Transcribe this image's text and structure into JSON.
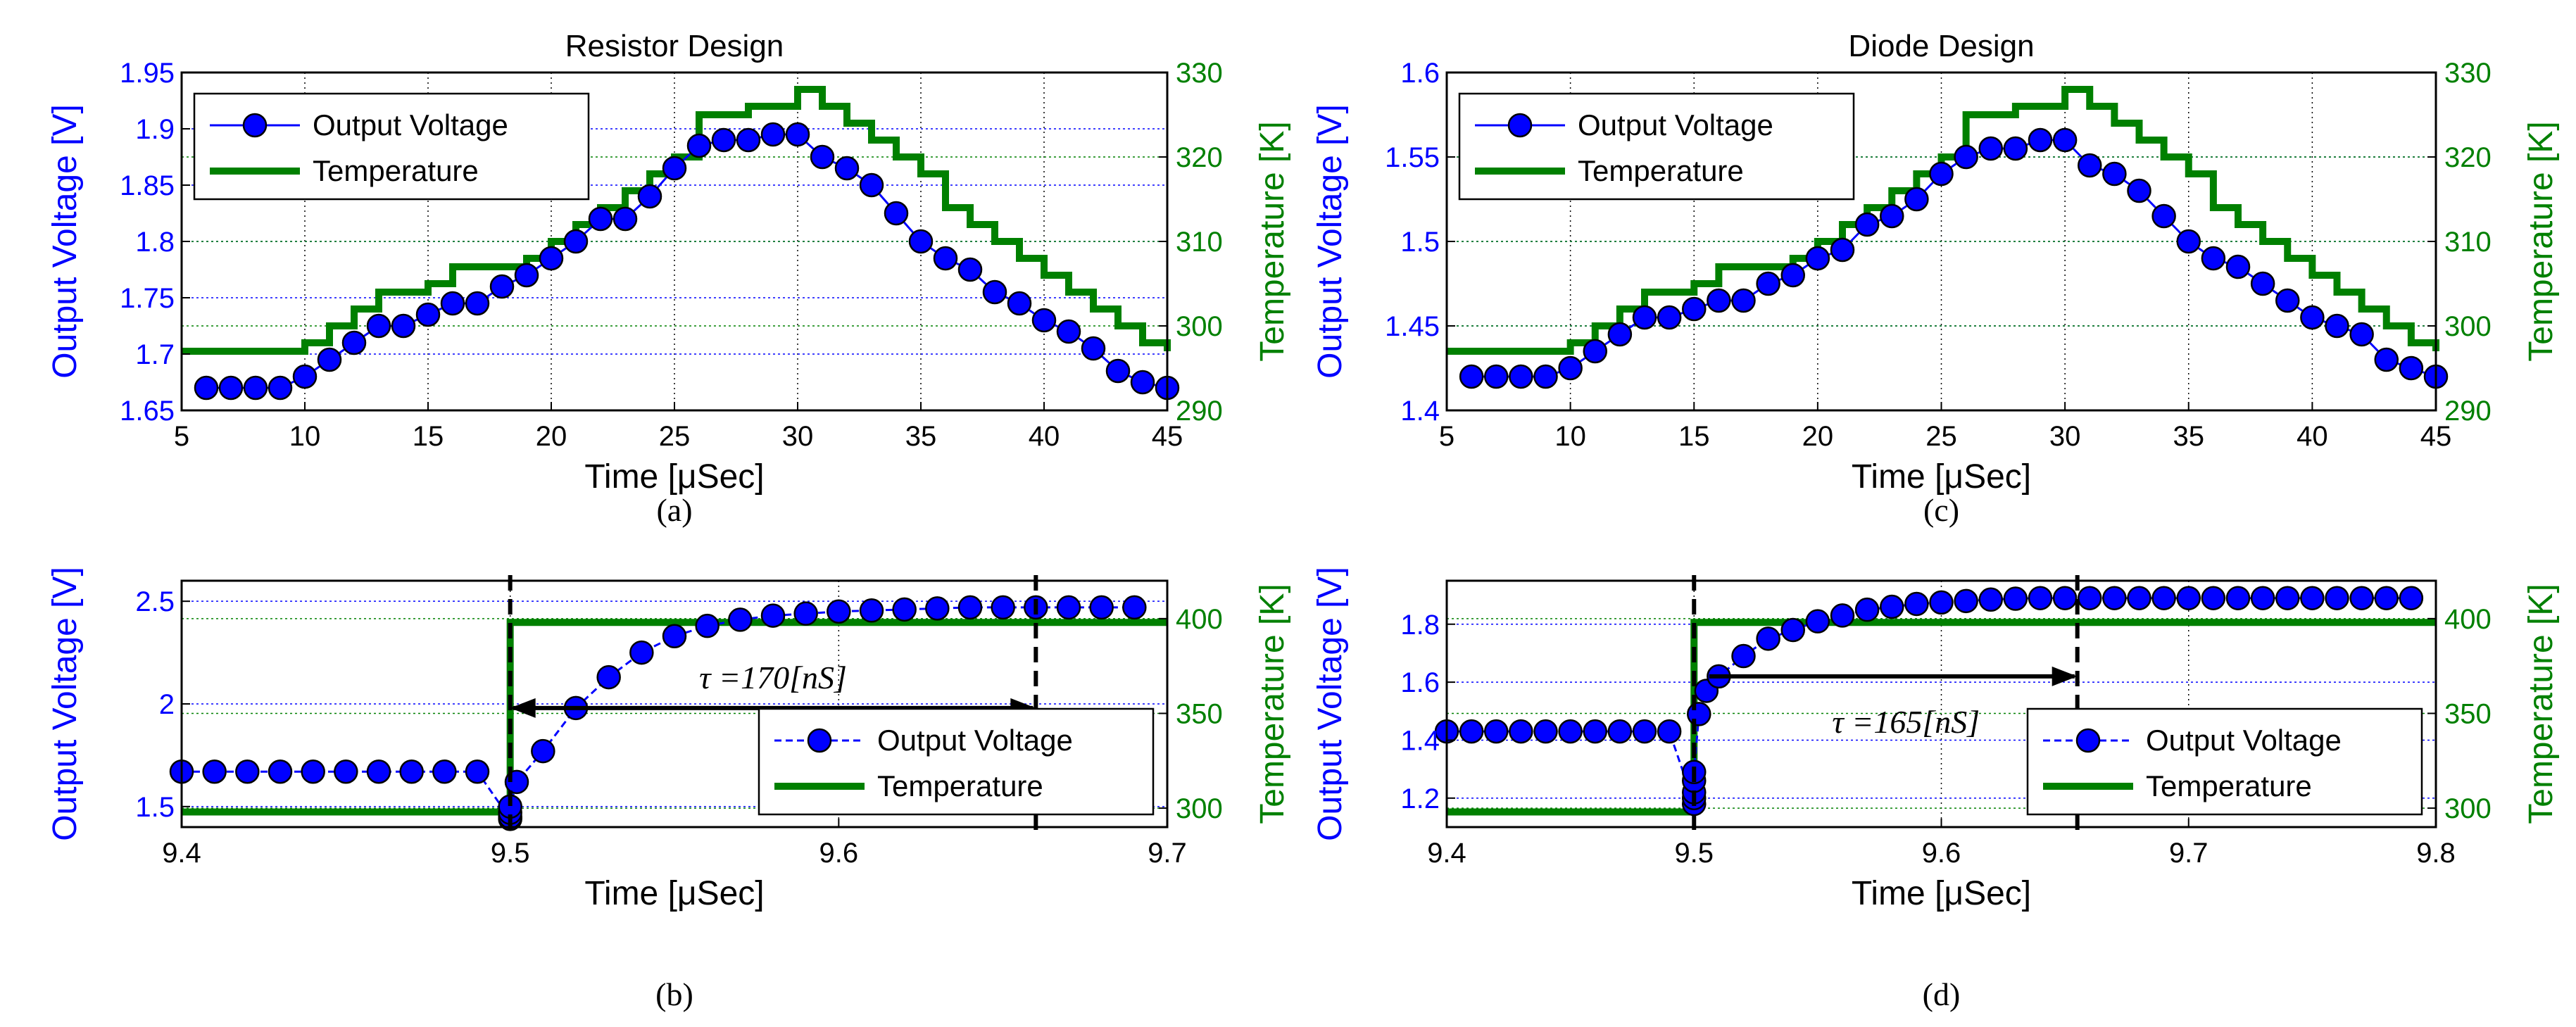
{
  "colors": {
    "voltage": "#0000ff",
    "marker": "#0000ff",
    "markerStroke": "#000000",
    "temperature": "#008000",
    "grid": "#000000",
    "annotation": "#000000"
  },
  "chart_data": [
    {
      "id": "a",
      "type": "line",
      "title": "Resistor Design",
      "caption": "(a)",
      "xlabel": "Time [μSec]",
      "ylabel": "Output Voltage [V]",
      "y2label": "Temperature [K]",
      "xlim": [
        5,
        45
      ],
      "ylim": [
        1.65,
        1.95
      ],
      "y2lim": [
        290,
        330
      ],
      "xticks": [
        5,
        10,
        15,
        20,
        25,
        30,
        35,
        40,
        45
      ],
      "yticks": [
        1.65,
        1.7,
        1.75,
        1.8,
        1.85,
        1.9,
        1.95
      ],
      "y2ticks": [
        290,
        300,
        310,
        320,
        330
      ],
      "legend": {
        "position": "top-left",
        "entries": [
          "Output Voltage",
          "Temperature"
        ]
      },
      "series": [
        {
          "name": "Output Voltage",
          "axis": "left",
          "style": "solid-marker",
          "x": [
            6,
            7,
            8,
            9,
            10,
            11,
            12,
            13,
            14,
            15,
            16,
            17,
            18,
            19,
            20,
            21,
            22,
            23,
            24,
            25,
            26,
            27,
            28,
            29,
            30,
            31,
            32,
            33,
            34,
            35,
            36,
            37,
            38,
            39,
            40,
            41,
            42,
            43,
            44,
            45
          ],
          "y": [
            1.67,
            1.67,
            1.67,
            1.67,
            1.68,
            1.695,
            1.71,
            1.725,
            1.725,
            1.735,
            1.745,
            1.745,
            1.76,
            1.77,
            1.785,
            1.8,
            1.82,
            1.82,
            1.84,
            1.865,
            1.885,
            1.89,
            1.89,
            1.895,
            1.895,
            1.875,
            1.865,
            1.85,
            1.825,
            1.8,
            1.785,
            1.775,
            1.755,
            1.745,
            1.73,
            1.72,
            1.705,
            1.685,
            1.675,
            1.67
          ]
        },
        {
          "name": "Temperature",
          "axis": "right",
          "style": "step",
          "x": [
            5,
            9,
            10,
            11,
            12,
            13,
            14,
            15,
            16,
            17,
            18,
            19,
            20,
            21,
            22,
            23,
            24,
            25,
            26,
            27,
            28,
            29,
            30,
            31,
            32,
            33,
            34,
            35,
            36,
            37,
            38,
            39,
            40,
            41,
            42,
            43,
            44,
            45
          ],
          "y": [
            297,
            297,
            298,
            300,
            302,
            304,
            304,
            305,
            307,
            307,
            307,
            308,
            310,
            312,
            314,
            316,
            318,
            320,
            325,
            325,
            326,
            326,
            328,
            326,
            324,
            322,
            320,
            318,
            314,
            312,
            310,
            308,
            306,
            304,
            302,
            300,
            298,
            297
          ]
        }
      ]
    },
    {
      "id": "b",
      "type": "line",
      "title": "",
      "caption": "(b)",
      "xlabel": "Time [μSec]",
      "ylabel": "Output Voltage [V]",
      "y2label": "Temperature [K]",
      "xlim": [
        9.4,
        9.7
      ],
      "ylim": [
        1.4,
        2.6
      ],
      "y2lim": [
        290,
        420
      ],
      "xticks": [
        9.4,
        9.5,
        9.6,
        9.7
      ],
      "yticks": [
        1.5,
        2,
        2.5
      ],
      "y2ticks": [
        300,
        350,
        400
      ],
      "legend": {
        "position": "bottom-right",
        "entries": [
          "Output Voltage",
          "Temperature"
        ]
      },
      "annotation": {
        "text": "τ =170[nS]",
        "x_start": 9.5,
        "x_end": 9.66,
        "y": 1.98,
        "vlines": [
          9.5,
          9.66
        ]
      },
      "series": [
        {
          "name": "Output Voltage",
          "axis": "left",
          "style": "dashed-marker",
          "x": [
            9.4,
            9.41,
            9.42,
            9.43,
            9.44,
            9.45,
            9.46,
            9.47,
            9.48,
            9.49,
            9.5,
            9.5,
            9.5,
            9.5,
            9.502,
            9.51,
            9.52,
            9.53,
            9.54,
            9.55,
            9.56,
            9.57,
            9.58,
            9.59,
            9.6,
            9.61,
            9.62,
            9.63,
            9.64,
            9.65,
            9.66,
            9.67,
            9.68,
            9.69
          ],
          "y": [
            1.67,
            1.67,
            1.67,
            1.67,
            1.67,
            1.67,
            1.67,
            1.67,
            1.67,
            1.67,
            1.44,
            1.45,
            1.47,
            1.5,
            1.62,
            1.77,
            1.98,
            2.13,
            2.25,
            2.33,
            2.38,
            2.41,
            2.43,
            2.44,
            2.45,
            2.455,
            2.46,
            2.465,
            2.47,
            2.47,
            2.47,
            2.47,
            2.47,
            2.47
          ]
        },
        {
          "name": "Temperature",
          "axis": "right",
          "style": "step",
          "x": [
            9.4,
            9.5,
            9.5,
            9.7
          ],
          "y": [
            298,
            298,
            398,
            398
          ]
        }
      ]
    },
    {
      "id": "c",
      "type": "line",
      "title": "Diode Design",
      "caption": "(c)",
      "xlabel": "Time [μSec]",
      "ylabel": "Output Voltage [V]",
      "y2label": "Temperature [K]",
      "xlim": [
        5,
        45
      ],
      "ylim": [
        1.4,
        1.6
      ],
      "y2lim": [
        290,
        330
      ],
      "xticks": [
        5,
        10,
        15,
        20,
        25,
        30,
        35,
        40,
        45
      ],
      "yticks": [
        1.4,
        1.45,
        1.5,
        1.55,
        1.6
      ],
      "y2ticks": [
        290,
        300,
        310,
        320,
        330
      ],
      "legend": {
        "position": "top-left",
        "entries": [
          "Output Voltage",
          "Temperature"
        ]
      },
      "series": [
        {
          "name": "Output Voltage",
          "axis": "left",
          "style": "solid-marker",
          "x": [
            6,
            7,
            8,
            9,
            10,
            11,
            12,
            13,
            14,
            15,
            16,
            17,
            18,
            19,
            20,
            21,
            22,
            23,
            24,
            25,
            26,
            27,
            28,
            29,
            30,
            31,
            32,
            33,
            34,
            35,
            36,
            37,
            38,
            39,
            40,
            41,
            42,
            43,
            44,
            45
          ],
          "y": [
            1.42,
            1.42,
            1.42,
            1.42,
            1.425,
            1.435,
            1.445,
            1.455,
            1.455,
            1.46,
            1.465,
            1.465,
            1.475,
            1.48,
            1.49,
            1.495,
            1.51,
            1.515,
            1.525,
            1.54,
            1.55,
            1.555,
            1.555,
            1.56,
            1.56,
            1.545,
            1.54,
            1.53,
            1.515,
            1.5,
            1.49,
            1.485,
            1.475,
            1.465,
            1.455,
            1.45,
            1.445,
            1.43,
            1.425,
            1.42
          ]
        },
        {
          "name": "Temperature",
          "axis": "right",
          "style": "step",
          "x": [
            5,
            9,
            10,
            11,
            12,
            13,
            14,
            15,
            16,
            17,
            18,
            19,
            20,
            21,
            22,
            23,
            24,
            25,
            26,
            27,
            28,
            29,
            30,
            31,
            32,
            33,
            34,
            35,
            36,
            37,
            38,
            39,
            40,
            41,
            42,
            43,
            44,
            45
          ],
          "y": [
            297,
            297,
            298,
            300,
            302,
            304,
            304,
            305,
            307,
            307,
            307,
            308,
            310,
            312,
            314,
            316,
            318,
            320,
            325,
            325,
            326,
            326,
            328,
            326,
            324,
            322,
            320,
            318,
            314,
            312,
            310,
            308,
            306,
            304,
            302,
            300,
            298,
            297
          ]
        }
      ]
    },
    {
      "id": "d",
      "type": "line",
      "title": "",
      "caption": "(d)",
      "xlabel": "Time [μSec]",
      "ylabel": "Output Voltage [V]",
      "y2label": "Temperature [K]",
      "xlim": [
        9.4,
        9.8
      ],
      "ylim": [
        1.1,
        1.95
      ],
      "y2lim": [
        290,
        420
      ],
      "xticks": [
        9.4,
        9.5,
        9.6,
        9.7,
        9.8
      ],
      "yticks": [
        1.2,
        1.4,
        1.6,
        1.8
      ],
      "y2ticks": [
        300,
        350,
        400
      ],
      "legend": {
        "position": "bottom-right",
        "entries": [
          "Output Voltage",
          "Temperature"
        ]
      },
      "annotation": {
        "text": "τ =165[nS]",
        "x_start": 9.505,
        "x_end": 9.655,
        "y": 1.62,
        "vlines": [
          9.5,
          9.655
        ]
      },
      "series": [
        {
          "name": "Output Voltage",
          "axis": "left",
          "style": "dashed-marker",
          "x": [
            9.4,
            9.41,
            9.42,
            9.43,
            9.44,
            9.45,
            9.46,
            9.47,
            9.48,
            9.49,
            9.5,
            9.5,
            9.5,
            9.5,
            9.5,
            9.502,
            9.505,
            9.51,
            9.52,
            9.53,
            9.54,
            9.55,
            9.56,
            9.57,
            9.58,
            9.59,
            9.6,
            9.61,
            9.62,
            9.63,
            9.64,
            9.65,
            9.66,
            9.67,
            9.68,
            9.69,
            9.7,
            9.71,
            9.72,
            9.73,
            9.74,
            9.75,
            9.76,
            9.77,
            9.78,
            9.79
          ],
          "y": [
            1.43,
            1.43,
            1.43,
            1.43,
            1.43,
            1.43,
            1.43,
            1.43,
            1.43,
            1.43,
            1.18,
            1.2,
            1.22,
            1.26,
            1.29,
            1.49,
            1.57,
            1.62,
            1.69,
            1.75,
            1.78,
            1.81,
            1.83,
            1.85,
            1.86,
            1.87,
            1.875,
            1.88,
            1.885,
            1.888,
            1.89,
            1.89,
            1.89,
            1.89,
            1.89,
            1.89,
            1.89,
            1.89,
            1.89,
            1.89,
            1.89,
            1.89,
            1.89,
            1.89,
            1.89,
            1.89
          ]
        },
        {
          "name": "Temperature",
          "axis": "right",
          "style": "step",
          "x": [
            9.4,
            9.5,
            9.5,
            9.8
          ],
          "y": [
            298,
            298,
            398,
            398
          ]
        }
      ]
    }
  ]
}
